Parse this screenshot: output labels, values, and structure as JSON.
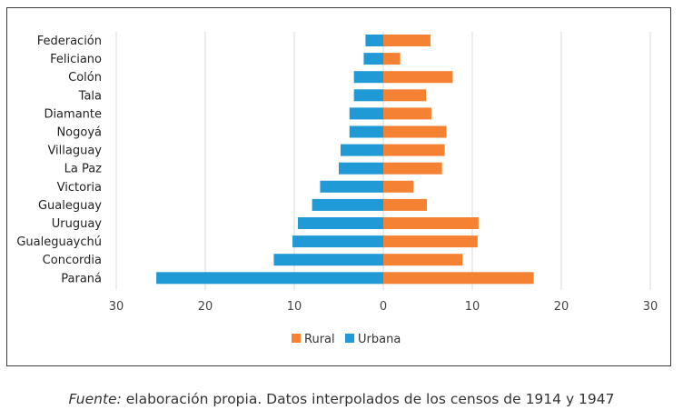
{
  "chart_data": {
    "type": "bar",
    "orientation": "horizontal",
    "diverging": true,
    "categories": [
      "Federación",
      "Feliciano",
      "Colón",
      "Tala",
      "Diamante",
      "Nogoyá",
      "Villaguay",
      "La Paz",
      "Victoria",
      "Gualeguay",
      "Uruguay",
      "Gualeguaychú",
      "Concordia",
      "Paraná"
    ],
    "series": [
      {
        "name": "Rural",
        "color": "#f58233",
        "values": [
          5.3,
          1.9,
          7.8,
          4.8,
          5.4,
          7.1,
          6.9,
          6.6,
          3.4,
          4.9,
          10.7,
          10.6,
          8.9,
          16.9
        ]
      },
      {
        "name": "Urbana",
        "color": "#1f9ad6",
        "values": [
          2.0,
          2.2,
          3.3,
          3.3,
          3.8,
          3.8,
          4.8,
          5.0,
          7.1,
          8.0,
          9.6,
          10.2,
          12.3,
          25.5
        ]
      }
    ],
    "xlim": [
      -30,
      30
    ],
    "xticks": [
      "30",
      "20",
      "10",
      "0",
      "10",
      "20",
      "30"
    ],
    "grid": true,
    "legend_placement": "bottom"
  },
  "legend": {
    "rural": "Rural",
    "urbana": "Urbana"
  },
  "caption": {
    "source_label": "Fuente:",
    "text": " elaboración propia. Datos interpolados de los censos de 1914 y 1947"
  }
}
